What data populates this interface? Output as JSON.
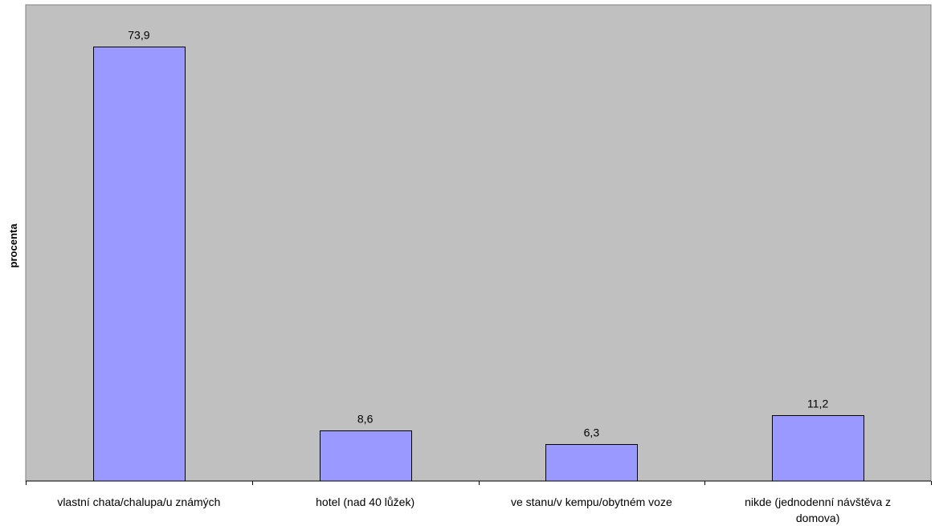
{
  "chart_data": {
    "type": "bar",
    "categories": [
      [
        "vlastní chata/chalupa/u známých"
      ],
      [
        "hotel (nad 40 lůžek)"
      ],
      [
        "ve stanu/v kempu/obytném voze"
      ],
      [
        "nikde (jednodenní návštěva z",
        "domova)"
      ]
    ],
    "values": [
      73.9,
      8.6,
      6.3,
      11.2
    ],
    "data_labels": [
      "73,9",
      "8,6",
      "6,3",
      "11,2"
    ],
    "title": "",
    "xlabel": "",
    "ylabel": "procenta",
    "ylim": [
      0,
      80
    ],
    "grid": false,
    "legend": "none"
  },
  "colors": {
    "plot_background": "#c0c0c0",
    "bar_fill": "#9999ff",
    "bar_stroke": "#000000",
    "axis": "#000000"
  }
}
